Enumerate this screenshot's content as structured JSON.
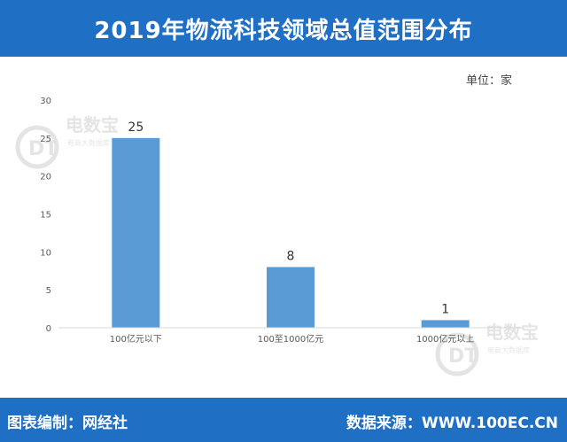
{
  "header": {
    "title": "2019年物流科技领域总值范围分布"
  },
  "unit_label": "单位：家",
  "footer": {
    "left": "图表编制：网经社",
    "right": "数据来源：WWW.100EC.CN"
  },
  "watermark": {
    "logo_text": "电数宝",
    "sub_text": "电商大数据库",
    "mark": "eDT"
  },
  "colors": {
    "accent": "#1f6fc5",
    "bar": "#5b9bd5"
  },
  "chart_data": {
    "type": "bar",
    "categories": [
      "100亿元以下",
      "100至1000亿元",
      "1000亿元以上"
    ],
    "values": [
      25,
      8,
      1
    ],
    "title": "",
    "xlabel": "",
    "ylabel": "",
    "ylim": [
      0,
      30
    ],
    "yticks": [
      0,
      5,
      10,
      15,
      20,
      25,
      30
    ],
    "grid": false,
    "data_labels": true
  }
}
